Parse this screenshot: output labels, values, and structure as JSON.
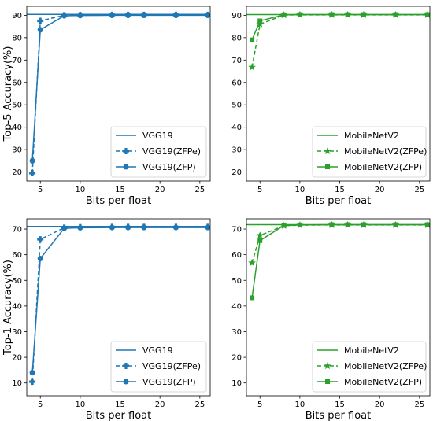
{
  "chart_data": [
    {
      "type": "line",
      "xlabel": "Bits per float",
      "ylabel": "Top-5 Accuracy(%)",
      "xlim": [
        3.3,
        26.3
      ],
      "ylim": [
        16,
        94
      ],
      "xticks": [
        5,
        10,
        15,
        20,
        25
      ],
      "yticks": [
        20,
        30,
        40,
        50,
        60,
        70,
        80,
        90
      ],
      "color": "#1f77b4",
      "legend_position": "bottom-right",
      "baseline": {
        "name": "VGG19",
        "value": 90.4
      },
      "series": [
        {
          "name": "VGG19(ZFPe)",
          "marker": "plus",
          "dashed": true,
          "x": [
            4,
            5,
            8,
            10,
            14,
            16,
            18,
            22,
            26
          ],
          "y": [
            19.5,
            87.5,
            90.0,
            90.1,
            90.2,
            90.2,
            90.2,
            90.2,
            90.2
          ]
        },
        {
          "name": "VGG19(ZFP)",
          "marker": "circle",
          "dashed": false,
          "x": [
            4,
            5,
            8,
            10,
            14,
            16,
            18,
            22,
            26
          ],
          "y": [
            25.0,
            83.5,
            89.8,
            89.9,
            90.0,
            90.0,
            90.0,
            90.0,
            90.0
          ]
        }
      ]
    },
    {
      "type": "line",
      "xlabel": "Bits per float",
      "ylabel": "",
      "xlim": [
        3.3,
        26.3
      ],
      "ylim": [
        16,
        94
      ],
      "xticks": [
        5,
        10,
        15,
        20,
        25
      ],
      "yticks": [
        20,
        30,
        40,
        50,
        60,
        70,
        80,
        90
      ],
      "color": "#2ca02c",
      "legend_position": "bottom-right",
      "baseline": {
        "name": "MobileNetV2",
        "value": 90.3
      },
      "series": [
        {
          "name": "MobileNetV2(ZFPe)",
          "marker": "star",
          "dashed": true,
          "x": [
            4,
            5,
            8,
            10,
            14,
            16,
            18,
            22,
            26
          ],
          "y": [
            66.8,
            86.0,
            90.1,
            90.2,
            90.2,
            90.2,
            90.2,
            90.2,
            90.2
          ]
        },
        {
          "name": "MobileNetV2(ZFP)",
          "marker": "square",
          "dashed": false,
          "x": [
            4,
            5,
            8,
            10,
            14,
            16,
            18,
            22,
            26
          ],
          "y": [
            79.0,
            87.5,
            90.2,
            90.3,
            90.3,
            90.3,
            90.3,
            90.3,
            90.3
          ]
        }
      ]
    },
    {
      "type": "line",
      "xlabel": "Bits per float",
      "ylabel": "Top-1 Accuracy(%)",
      "xlim": [
        3.3,
        26.3
      ],
      "ylim": [
        5,
        74
      ],
      "xticks": [
        5,
        10,
        15,
        20,
        25
      ],
      "yticks": [
        10,
        20,
        30,
        40,
        50,
        60,
        70
      ],
      "color": "#1f77b4",
      "legend_position": "bottom-right",
      "baseline": {
        "name": "VGG19",
        "value": 71.0
      },
      "series": [
        {
          "name": "VGG19(ZFPe)",
          "marker": "plus",
          "dashed": true,
          "x": [
            4,
            5,
            8,
            10,
            14,
            16,
            18,
            22,
            26
          ],
          "y": [
            10.5,
            66.0,
            70.5,
            70.7,
            70.8,
            70.8,
            70.8,
            70.8,
            70.8
          ]
        },
        {
          "name": "VGG19(ZFP)",
          "marker": "circle",
          "dashed": false,
          "x": [
            4,
            5,
            8,
            10,
            14,
            16,
            18,
            22,
            26
          ],
          "y": [
            14.0,
            58.5,
            70.3,
            70.5,
            70.6,
            70.6,
            70.6,
            70.6,
            70.6
          ]
        }
      ]
    },
    {
      "type": "line",
      "xlabel": "Bits per float",
      "ylabel": "",
      "xlim": [
        3.3,
        26.3
      ],
      "ylim": [
        5,
        74
      ],
      "xticks": [
        5,
        10,
        15,
        20,
        25
      ],
      "yticks": [
        10,
        20,
        30,
        40,
        50,
        60,
        70
      ],
      "color": "#2ca02c",
      "legend_position": "bottom-right",
      "baseline": {
        "name": "MobileNetV2",
        "value": 71.7
      },
      "series": [
        {
          "name": "MobileNetV2(ZFPe)",
          "marker": "star",
          "dashed": true,
          "x": [
            4,
            5,
            8,
            10,
            14,
            16,
            18,
            22,
            26
          ],
          "y": [
            56.8,
            67.5,
            71.3,
            71.5,
            71.6,
            71.6,
            71.6,
            71.6,
            71.6
          ]
        },
        {
          "name": "MobileNetV2(ZFP)",
          "marker": "square",
          "dashed": false,
          "x": [
            4,
            5,
            8,
            10,
            14,
            16,
            18,
            22,
            26
          ],
          "y": [
            43.2,
            65.5,
            71.4,
            71.6,
            71.7,
            71.7,
            71.7,
            71.7,
            71.7
          ]
        }
      ]
    }
  ]
}
